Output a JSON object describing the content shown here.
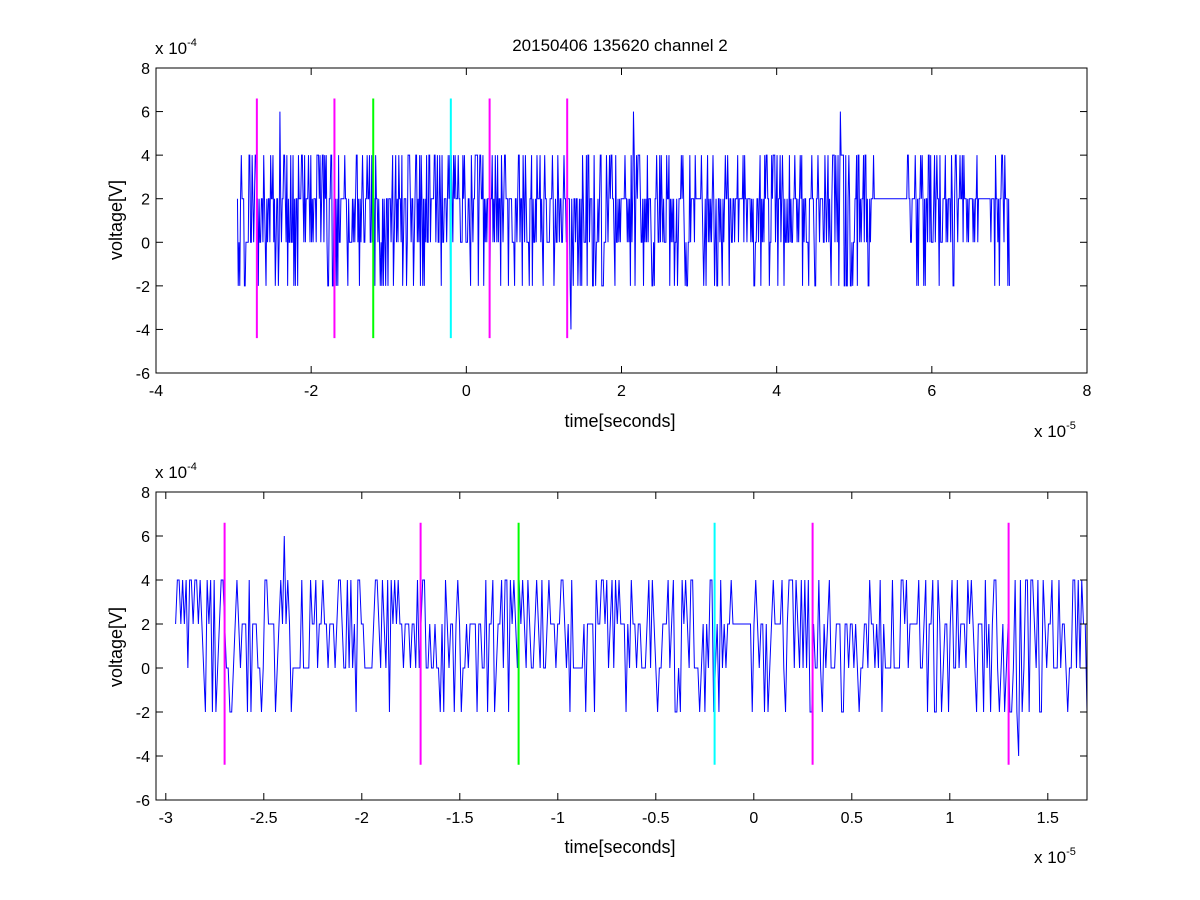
{
  "figure": {
    "title": "20150406 135620 channel 2"
  },
  "colors": {
    "signal": "#0000ff",
    "magenta_marker": "#ff00ff",
    "green_marker": "#00ff00",
    "cyan_marker": "#00ffff",
    "axes": "#000000",
    "background": "#ffffff"
  },
  "chart_data": [
    {
      "type": "line",
      "title": "20150406 135620 channel 2",
      "xlabel": "time[seconds]",
      "ylabel": "voltage[V]",
      "x_multiplier_text": "x 10",
      "x_multiplier_exp": "-5",
      "y_multiplier_text": "x 10",
      "y_multiplier_exp": "-4",
      "xlim": [
        -4,
        8
      ],
      "ylim": [
        -6,
        8
      ],
      "x_ticks": [
        -4,
        -2,
        0,
        2,
        4,
        6,
        8
      ],
      "x_tick_labels": [
        "-4",
        "-2",
        "0",
        "2",
        "4",
        "6",
        "8"
      ],
      "y_ticks": [
        -6,
        -4,
        -2,
        0,
        2,
        4,
        6,
        8
      ],
      "y_tick_labels": [
        "-6",
        "-4",
        "-2",
        "0",
        "2",
        "4",
        "6",
        "8"
      ],
      "grid": false,
      "series": [
        {
          "x_range": [
            -2.95,
            7.0
          ],
          "levels": [
            -4,
            -2,
            0,
            2,
            4,
            6
          ],
          "baseline": 2,
          "peaks": [
            {
              "x": -2.4,
              "y": 6
            },
            {
              "x": 2.15,
              "y": 6
            },
            {
              "x": 4.82,
              "y": 6
            },
            {
              "x": 1.35,
              "y": -4
            }
          ],
          "quiet_intervals": [
            [
              5.25,
              5.65
            ],
            [
              6.6,
              6.75
            ]
          ]
        }
      ],
      "markers": [
        {
          "x": -2.7,
          "ymin": -4.4,
          "ymax": 6.6,
          "color": "magenta"
        },
        {
          "x": -1.7,
          "ymin": -4.4,
          "ymax": 6.6,
          "color": "magenta"
        },
        {
          "x": -1.2,
          "ymin": -4.4,
          "ymax": 6.6,
          "color": "green"
        },
        {
          "x": -0.2,
          "ymin": -4.4,
          "ymax": 6.6,
          "color": "cyan"
        },
        {
          "x": 0.3,
          "ymin": -4.4,
          "ymax": 6.6,
          "color": "magenta"
        },
        {
          "x": 1.3,
          "ymin": -4.4,
          "ymax": 6.6,
          "color": "magenta"
        }
      ]
    },
    {
      "type": "line",
      "title": "",
      "xlabel": "time[seconds]",
      "ylabel": "voltage[V]",
      "x_multiplier_text": "x 10",
      "x_multiplier_exp": "-5",
      "y_multiplier_text": "x 10",
      "y_multiplier_exp": "-4",
      "xlim": [
        -3.05,
        1.7
      ],
      "ylim": [
        -6,
        8
      ],
      "x_ticks": [
        -3,
        -2.5,
        -2,
        -1.5,
        -1,
        -0.5,
        0,
        0.5,
        1,
        1.5
      ],
      "x_tick_labels": [
        "-3",
        "-2.5",
        "-2",
        "-1.5",
        "-1",
        "-0.5",
        "0",
        "0.5",
        "1",
        "1.5"
      ],
      "y_ticks": [
        -6,
        -4,
        -2,
        0,
        2,
        4,
        6,
        8
      ],
      "y_tick_labels": [
        "-6",
        "-4",
        "-2",
        "0",
        "2",
        "4",
        "6",
        "8"
      ],
      "grid": false,
      "series": [
        {
          "x_range": [
            -2.95,
            1.7
          ],
          "levels": [
            -4,
            -2,
            0,
            2,
            4,
            6
          ],
          "baseline": 2,
          "peaks": [
            {
              "x": -2.4,
              "y": 6
            },
            {
              "x": 1.35,
              "y": -4
            }
          ],
          "quiet_intervals": [
            [
              -0.62,
              -0.6
            ],
            [
              -0.1,
              -0.02
            ]
          ]
        }
      ],
      "markers": [
        {
          "x": -2.7,
          "ymin": -4.4,
          "ymax": 6.6,
          "color": "magenta"
        },
        {
          "x": -1.7,
          "ymin": -4.4,
          "ymax": 6.6,
          "color": "magenta"
        },
        {
          "x": -1.2,
          "ymin": -4.4,
          "ymax": 6.6,
          "color": "green"
        },
        {
          "x": -0.2,
          "ymin": -4.4,
          "ymax": 6.6,
          "color": "cyan"
        },
        {
          "x": 0.3,
          "ymin": -4.4,
          "ymax": 6.6,
          "color": "magenta"
        },
        {
          "x": 1.3,
          "ymin": -4.4,
          "ymax": 6.6,
          "color": "magenta"
        }
      ]
    }
  ]
}
